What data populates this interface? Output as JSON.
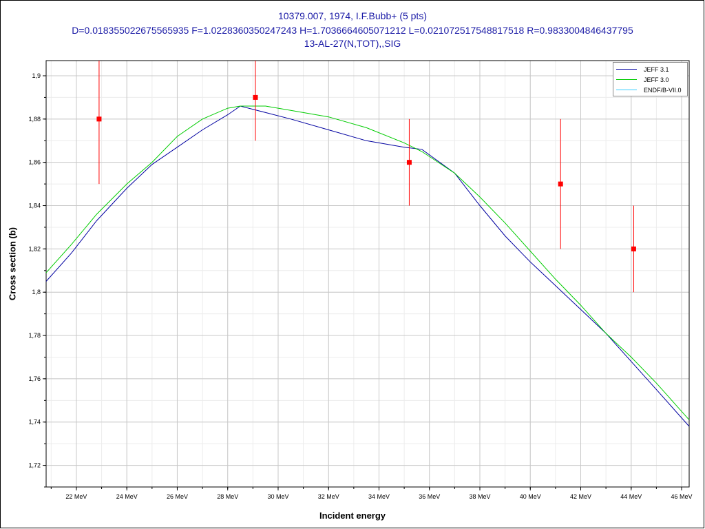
{
  "title": {
    "line1": "10379.007, 1974, I.F.Bubb+ (5 pts)",
    "line2": "D=0.018355022675565935 F=1.0228360350247243 H=1.7036664605071212 L=0.021072517548817518 R=0.9833004846437795",
    "line3": "13-AL-27(N,TOT),,SIG"
  },
  "chart_data": {
    "type": "line",
    "title": "10379.007, 1974, I.F.Bubb+ (5 pts)",
    "xlabel": "Incident energy",
    "ylabel": "Cross section (b)",
    "xlim": [
      20.8,
      46.3
    ],
    "ylim": [
      1.71,
      1.907
    ],
    "x_ticks": [
      22,
      24,
      26,
      28,
      30,
      32,
      34,
      36,
      38,
      40,
      42,
      44,
      46
    ],
    "x_tick_labels": [
      "22 MeV",
      "24 MeV",
      "26 MeV",
      "28 MeV",
      "30 MeV",
      "32 MeV",
      "34 MeV",
      "36 MeV",
      "38 MeV",
      "40 MeV",
      "42 MeV",
      "44 MeV",
      "46 MeV"
    ],
    "y_ticks": [
      1.72,
      1.74,
      1.76,
      1.78,
      1.8,
      1.82,
      1.84,
      1.86,
      1.88,
      1.9
    ],
    "y_tick_labels": [
      "1,72",
      "1,74",
      "1,76",
      "1,78",
      "1,8",
      "1,82",
      "1,84",
      "1,86",
      "1,88",
      "1,9"
    ],
    "grid": true,
    "legend_position": "top-right",
    "series": [
      {
        "name": "JEFF 3.1",
        "color": "#0000a0",
        "x": [
          20.8,
          21.8,
          22.8,
          24.0,
          25.0,
          26.0,
          27.0,
          28.0,
          28.5,
          29.5,
          30.5,
          32.0,
          33.5,
          35.0,
          35.7,
          37.0,
          38.0,
          39.0,
          40.0,
          41.0,
          42.0,
          43.0,
          44.0,
          45.0,
          46.3
        ],
        "y": [
          1.805,
          1.818,
          1.833,
          1.848,
          1.859,
          1.867,
          1.875,
          1.882,
          1.886,
          1.883,
          1.88,
          1.875,
          1.87,
          1.867,
          1.866,
          1.855,
          1.84,
          1.826,
          1.814,
          1.803,
          1.792,
          1.781,
          1.768,
          1.755,
          1.738
        ]
      },
      {
        "name": "JEFF 3.0",
        "color": "#00cc00",
        "x": [
          20.8,
          21.8,
          22.8,
          24.0,
          25.0,
          26.0,
          27.0,
          28.0,
          28.5,
          29.5,
          30.5,
          32.0,
          33.5,
          35.0,
          35.7,
          37.0,
          38.0,
          39.0,
          40.0,
          41.0,
          42.0,
          43.0,
          44.0,
          45.0,
          46.3
        ],
        "y": [
          1.809,
          1.822,
          1.836,
          1.85,
          1.86,
          1.872,
          1.88,
          1.885,
          1.886,
          1.886,
          1.884,
          1.881,
          1.876,
          1.869,
          1.865,
          1.855,
          1.844,
          1.832,
          1.819,
          1.806,
          1.794,
          1.781,
          1.77,
          1.758,
          1.741
        ]
      },
      {
        "name": "ENDF/B-VII.0",
        "color": "#33ccff",
        "x": [],
        "y": []
      }
    ],
    "experimental_points": {
      "color": "#ff0000",
      "x": [
        22.9,
        29.1,
        35.2,
        41.2,
        44.1
      ],
      "y": [
        1.88,
        1.89,
        1.86,
        1.85,
        1.82
      ],
      "yerr": [
        0.03,
        0.02,
        0.02,
        0.03,
        0.02
      ]
    }
  }
}
